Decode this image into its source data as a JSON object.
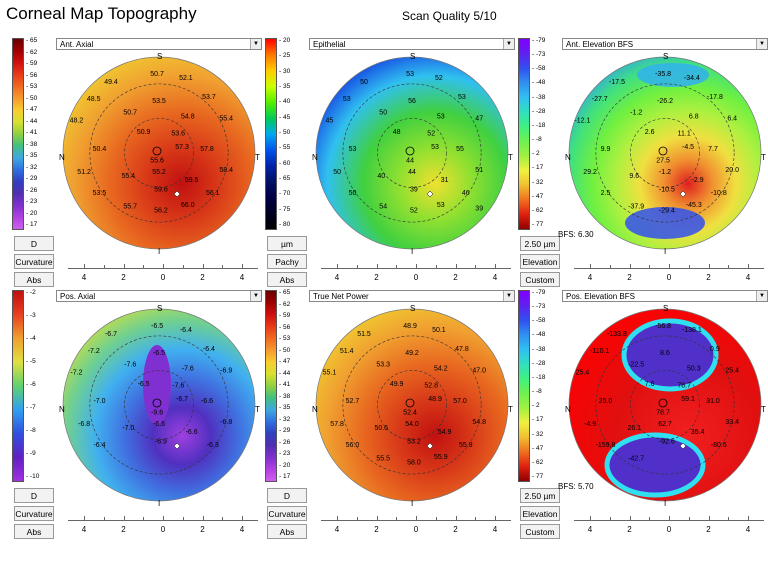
{
  "header": {
    "title": "Corneal Map Topography",
    "scan_quality": "Scan Quality 5/10"
  },
  "icons": {
    "dropdown": "chevron-down-icon",
    "pupil": "circle-marker-icon",
    "apex": "diamond-marker-icon"
  },
  "orientation": {
    "top": "S",
    "bottom": "I",
    "left": "N",
    "right": "T"
  },
  "panels": [
    {
      "id": "ant-axial",
      "title": "Ant. Axial",
      "scale_labels": [
        "65",
        "62",
        "59",
        "56",
        "53",
        "50",
        "47",
        "44",
        "41",
        "38",
        "35",
        "32",
        "29",
        "26",
        "23",
        "20",
        "17"
      ],
      "scale_colors": [
        "#6b0000",
        "#a00000",
        "#d01010",
        "#e83a1a",
        "#f06a20",
        "#f59a30",
        "#f8cd30",
        "#d8e030",
        "#90d040",
        "#40c080",
        "#40a8e0",
        "#3070e0",
        "#3040c0",
        "#5030b0",
        "#8030d0",
        "#b040e0",
        "#d060f0"
      ],
      "map_colors": [
        "#f0d030",
        "#f0a030",
        "#e86820",
        "#d83818",
        "#c01010"
      ],
      "buttons": [
        "D",
        "Curvature",
        "Abs"
      ],
      "values": [
        "50.7",
        "52.1",
        "49.4",
        "53.7",
        "48.5",
        "50.7",
        "53.5",
        "54.8",
        "55.4",
        "48.2",
        "50.9",
        "53.6",
        "57.3",
        "50.4",
        "55.6",
        "57.8",
        "51.2",
        "55.4",
        "55.2",
        "58.4",
        "53.5",
        "59.6",
        "59.5",
        "56.1",
        "55.7",
        "56.2",
        "66.0"
      ],
      "bfs": ""
    },
    {
      "id": "epithelial",
      "title": "Epithelial",
      "scale_labels": [
        "20",
        "25",
        "30",
        "35",
        "40",
        "45",
        "50",
        "55",
        "60",
        "65",
        "70",
        "75",
        "80"
      ],
      "scale_colors": [
        "#ff0000",
        "#ff7700",
        "#ffcc00",
        "#ccff00",
        "#55ee00",
        "#00cc55",
        "#00aaee",
        "#0055ee",
        "#0022aa",
        "#001166",
        "#000044",
        "#000022",
        "#000000"
      ],
      "map_colors": [
        "#1030e0",
        "#30c0f0",
        "#40d040",
        "#90e030",
        "#f0e030"
      ],
      "buttons": [
        "µm",
        "Pachy",
        "Abs"
      ],
      "values": [
        "53",
        "52",
        "50",
        "53",
        "53",
        "50",
        "56",
        "53",
        "47",
        "45",
        "48",
        "52",
        "53",
        "53",
        "44",
        "55",
        "50",
        "40",
        "44",
        "51",
        "50",
        "39",
        "31",
        "46",
        "54",
        "52",
        "53",
        "39"
      ],
      "bfs": ""
    },
    {
      "id": "ant-elevation",
      "title": "Ant. Elevation BFS",
      "scale_labels": [
        "-79",
        "-73",
        "-58",
        "-48",
        "-38",
        "-28",
        "-18",
        "-8",
        "2",
        "17",
        "32",
        "47",
        "62",
        "77"
      ],
      "scale_colors": [
        "#8000ff",
        "#6020f0",
        "#3050f0",
        "#3090f0",
        "#30c0f0",
        "#30e0c0",
        "#40f080",
        "#70f050",
        "#a0f040",
        "#f0f040",
        "#f0c030",
        "#f07020",
        "#e02010",
        "#900000"
      ],
      "map_colors": [
        "#30a0f0",
        "#40e080",
        "#70f040",
        "#b0f040",
        "#f0e040",
        "#f09030",
        "#e02020"
      ],
      "buttons": [
        "2.50 µm",
        "Elevation",
        "Custom"
      ],
      "values": [
        "-35.8",
        "-34.4",
        "-17.5",
        "-17.8",
        "-27.7",
        "-1.2",
        "-26.2",
        "6.8",
        "6.4",
        "-12.1",
        "2.6",
        "11.1",
        "-4.5",
        "9.9",
        "27.5",
        "7.7",
        "29.2",
        "9.6",
        "-1.2",
        "20.0",
        "2.5",
        "-10.5",
        "-2.9",
        "-10.8",
        "-37.9",
        "-29.4",
        "-45.3"
      ],
      "bfs": "BFS: 6.30"
    },
    {
      "id": "pos-axial",
      "title": "Pos. Axial",
      "scale_labels": [
        "-2",
        "-3",
        "-4",
        "-5",
        "-6",
        "-7",
        "-8",
        "-9",
        "-10"
      ],
      "scale_colors": [
        "#c01010",
        "#e84020",
        "#f0a030",
        "#e0e040",
        "#60d070",
        "#30a0f0",
        "#3050e0",
        "#6020c0",
        "#a030e0"
      ],
      "map_colors": [
        "#d0e040",
        "#70d090",
        "#40b0f0",
        "#4070e0",
        "#5030c0",
        "#a040e0"
      ],
      "buttons": [
        "D",
        "Curvature",
        "Abs"
      ],
      "values": [
        "-6.5",
        "-6.4",
        "-6.7",
        "-6.4",
        "-7.2",
        "-7.6",
        "-6.5",
        "-7.6",
        "-6.9",
        "-7.2",
        "-6.5",
        "-7.6",
        "-6.7",
        "-7.0",
        "-9.6",
        "-6.6",
        "-6.8",
        "-7.0",
        "-6.6",
        "-6.8",
        "-6.4",
        "-6.9",
        "-6.6",
        "-6.3"
      ],
      "bfs": ""
    },
    {
      "id": "true-net-power",
      "title": "True Net Power",
      "scale_labels": [
        "65",
        "62",
        "59",
        "56",
        "53",
        "50",
        "47",
        "44",
        "41",
        "38",
        "35",
        "32",
        "29",
        "26",
        "23",
        "20",
        "17"
      ],
      "scale_colors": [
        "#6b0000",
        "#a00000",
        "#d01010",
        "#e83a1a",
        "#f06a20",
        "#f59a30",
        "#f8cd30",
        "#d8e030",
        "#90d040",
        "#40c080",
        "#40a8e0",
        "#3070e0",
        "#3040c0",
        "#5030b0",
        "#8030d0",
        "#b040e0",
        "#d060f0"
      ],
      "map_colors": [
        "#f0d030",
        "#f0a030",
        "#e86820",
        "#d83818",
        "#c01010"
      ],
      "buttons": [
        "D",
        "Curvature",
        "Abs"
      ],
      "values": [
        "48.9",
        "50.1",
        "51.5",
        "47.8",
        "51.4",
        "53.3",
        "49.2",
        "54.2",
        "47.0",
        "55.1",
        "49.9",
        "52.8",
        "48.9",
        "52.7",
        "52.4",
        "57.0",
        "57.8",
        "50.6",
        "54.0",
        "54.8",
        "56.0",
        "53.2",
        "54.9",
        "55.9",
        "55.5",
        "58.0",
        "55.9"
      ],
      "bfs": ""
    },
    {
      "id": "pos-elevation",
      "title": "Pos. Elevation BFS",
      "scale_labels": [
        "-79",
        "-73",
        "-58",
        "-48",
        "-38",
        "-28",
        "-18",
        "-8",
        "2",
        "17",
        "32",
        "47",
        "62",
        "77"
      ],
      "scale_colors": [
        "#8000ff",
        "#6020f0",
        "#3050f0",
        "#3090f0",
        "#30c0f0",
        "#30e0c0",
        "#40f080",
        "#70f050",
        "#a0f040",
        "#f0f040",
        "#f0c030",
        "#f07020",
        "#e02010",
        "#900000"
      ],
      "map_colors": [
        "#ff0000",
        "#e01010",
        "#f02020"
      ],
      "buttons": [
        "2.50 µm",
        "Elevation",
        "Custom"
      ],
      "values": [
        "-56.8",
        "-138.1",
        "-133.8",
        "0.9",
        "-110.1",
        "-22.5",
        "8.6",
        "50.3",
        "25.4",
        "25.4",
        "7.6",
        "78.7",
        "59.1",
        "25.0",
        "78.7",
        "31.0",
        "-4.9",
        "26.1",
        "62.7",
        "33.4",
        "-159.8",
        "-92.6",
        "35.4",
        "-80.6",
        "-42.7"
      ],
      "bfs": "BFS: 5.70"
    }
  ],
  "axis_ticks": [
    "4",
    "2",
    "0",
    "2",
    "4"
  ]
}
